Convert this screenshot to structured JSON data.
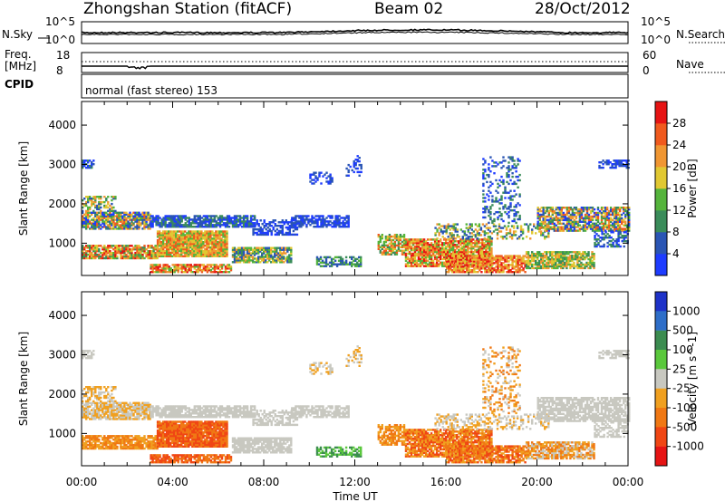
{
  "header": {
    "station": "Zhongshan Station (fitACF)",
    "beam": "Beam 02",
    "date": "28/Oct/2012"
  },
  "panels": {
    "nsky_label": "N.Sky",
    "nsearch_label": "N.Search",
    "nsky_ticks": [
      "10^5",
      "10^0"
    ],
    "nsearch_ticks": [
      "10^5",
      "10^0"
    ],
    "freq_label": "Freq.",
    "freq_unit": "[MHz]",
    "freq_ticks": [
      "18",
      "8"
    ],
    "nave_label": "Nave",
    "nave_ticks": [
      "60",
      "0"
    ],
    "cpid_label": "CPID",
    "cpid_value": "normal (fast stereo) 153"
  },
  "chart_data": [
    {
      "type": "heatmap",
      "quantity": "power",
      "ylabel": "Slant Range [km]",
      "xlabel": "",
      "ylim": [
        180,
        4600
      ],
      "y_ticks": [
        1000,
        2000,
        3000,
        4000
      ],
      "colorbar_label": "Power [dB]",
      "colorbar_ticks": [
        "4",
        "8",
        "12",
        "16",
        "20",
        "24",
        "28"
      ],
      "colors": [
        "#1e3cff",
        "#2a55b4",
        "#3a8c5a",
        "#55b43c",
        "#e1c832",
        "#f09632",
        "#f05a1e",
        "#e61414"
      ]
    },
    {
      "type": "heatmap",
      "quantity": "velocity",
      "ylabel": "Slant Range [km]",
      "xlabel": "Time UT",
      "ylim": [
        180,
        4600
      ],
      "y_ticks": [
        1000,
        2000,
        3000,
        4000
      ],
      "x_ticks": [
        "00:00",
        "04:00",
        "08:00",
        "12:00",
        "16:00",
        "20:00",
        "00:00"
      ],
      "colorbar_label": "Velocity [m s^-1]",
      "colorbar_ticks": [
        "1000",
        "500",
        "100",
        "25",
        "-25",
        "-100",
        "-500",
        "-1000"
      ],
      "colors": [
        "#1e32c8",
        "#2e6ec8",
        "#3c8c50",
        "#5ac83c",
        "#c8c8c0",
        "#f0a020",
        "#f07814",
        "#f04614",
        "#e61414"
      ]
    }
  ]
}
